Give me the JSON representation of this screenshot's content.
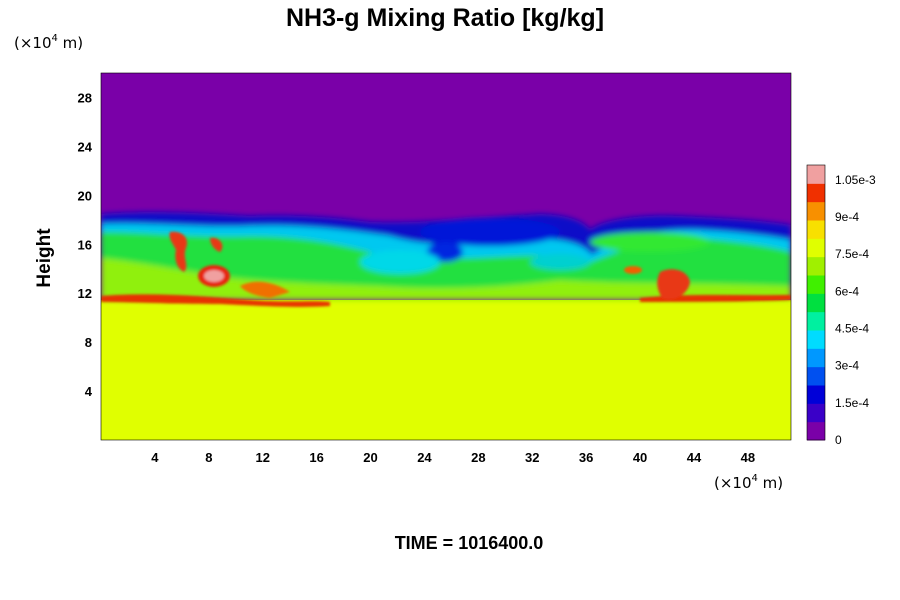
{
  "chart_data": {
    "type": "heatmap",
    "title": "NH3-g Mixing Ratio [kg/kg]",
    "xlabel": "",
    "ylabel": "Height",
    "x_unit": {
      "prefix": "(×10",
      "exponent": "4",
      "suffix": " m)"
    },
    "y_unit": {
      "prefix": "(×10",
      "exponent": "4",
      "suffix": " m)"
    },
    "xlim": [
      0,
      51.2
    ],
    "ylim": [
      0,
      30
    ],
    "x_ticks": [
      4,
      8,
      12,
      16,
      20,
      24,
      28,
      32,
      36,
      40,
      44,
      48
    ],
    "y_ticks": [
      4,
      8,
      12,
      16,
      20,
      24,
      28
    ],
    "x_tick_labels": [
      "4",
      "8",
      "12",
      "16",
      "20",
      "24",
      "28",
      "32",
      "36",
      "40",
      "44",
      "48"
    ],
    "y_tick_labels": [
      "4",
      "8",
      "12",
      "16",
      "20",
      "24",
      "28"
    ],
    "time_text": "TIME = 1016400.0",
    "colorbar": {
      "min": 0,
      "max": 0.00111,
      "ticks": [
        0,
        0.00015,
        0.0003,
        0.00045,
        0.0006,
        0.00075,
        0.0009,
        0.00105
      ],
      "tick_labels": [
        "0",
        "1.5e-4",
        "3e-4",
        "4.5e-4",
        "6e-4",
        "7.5e-4",
        "9e-4",
        "1.05e-3"
      ],
      "colors": [
        "#7a00a8",
        "#3a00c8",
        "#0000d8",
        "#0050f0",
        "#0098ff",
        "#00dcff",
        "#00f0a0",
        "#00e040",
        "#40f000",
        "#a0f000",
        "#e0ff00",
        "#f8e000",
        "#f89000",
        "#f03000",
        "#f0a0a0"
      ]
    },
    "regions": [
      {
        "desc": "upper layer",
        "height_range": [
          18.5,
          30
        ],
        "value": 0.0
      },
      {
        "desc": "turbulent mixed band",
        "height_range": [
          11.5,
          18.5
        ],
        "value_range": [
          0.00015,
          0.00108
        ]
      },
      {
        "desc": "lower layer",
        "height_range": [
          0,
          11.5
        ],
        "value": 0.00078
      }
    ]
  }
}
